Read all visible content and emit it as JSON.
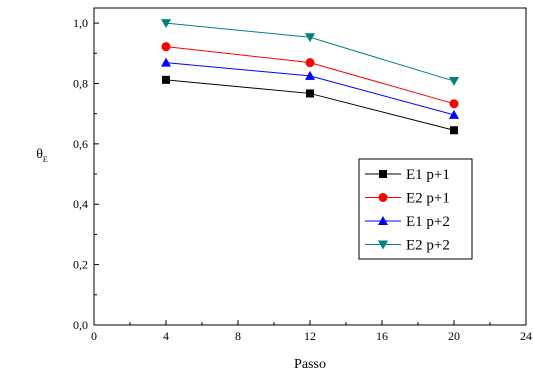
{
  "chart_data": {
    "type": "line",
    "xlabel": "Passo",
    "ylabel": {
      "main": "θ",
      "sub": "E"
    },
    "xlim": [
      0,
      24
    ],
    "ylim": [
      0.0,
      1.05
    ],
    "x_ticks": [
      {
        "value": 0,
        "label": "0"
      },
      {
        "value": 4,
        "label": "4"
      },
      {
        "value": 8,
        "label": "8"
      },
      {
        "value": 12,
        "label": "12"
      },
      {
        "value": 16,
        "label": "16"
      },
      {
        "value": 20,
        "label": "20"
      },
      {
        "value": 24,
        "label": "24"
      }
    ],
    "x_minor_ticks": [
      2,
      6,
      10,
      14,
      18,
      22
    ],
    "y_ticks": [
      {
        "value": 0.0,
        "label": "0,0"
      },
      {
        "value": 0.2,
        "label": "0,2"
      },
      {
        "value": 0.4,
        "label": "0,4"
      },
      {
        "value": 0.6,
        "label": "0,6"
      },
      {
        "value": 0.8,
        "label": "0,8"
      },
      {
        "value": 1.0,
        "label": "1,0"
      }
    ],
    "y_minor_ticks": [
      0.1,
      0.3,
      0.5,
      0.7,
      0.9
    ],
    "grid": false,
    "legend_position": "center-right",
    "x": [
      4,
      12,
      20
    ],
    "series": [
      {
        "name": "E1 p+1",
        "values": [
          0.812,
          0.767,
          0.645
        ],
        "color": "#000000",
        "marker": "square"
      },
      {
        "name": "E2 p+1",
        "values": [
          0.922,
          0.869,
          0.733
        ],
        "color": "#ff0000",
        "marker": "circle"
      },
      {
        "name": "E1 p+2",
        "values": [
          0.869,
          0.825,
          0.696
        ],
        "color": "#0000ff",
        "marker": "triangle-up"
      },
      {
        "name": "E2 p+2",
        "values": [
          1.0,
          0.953,
          0.808
        ],
        "color": "#008080",
        "marker": "triangle-down"
      }
    ]
  }
}
